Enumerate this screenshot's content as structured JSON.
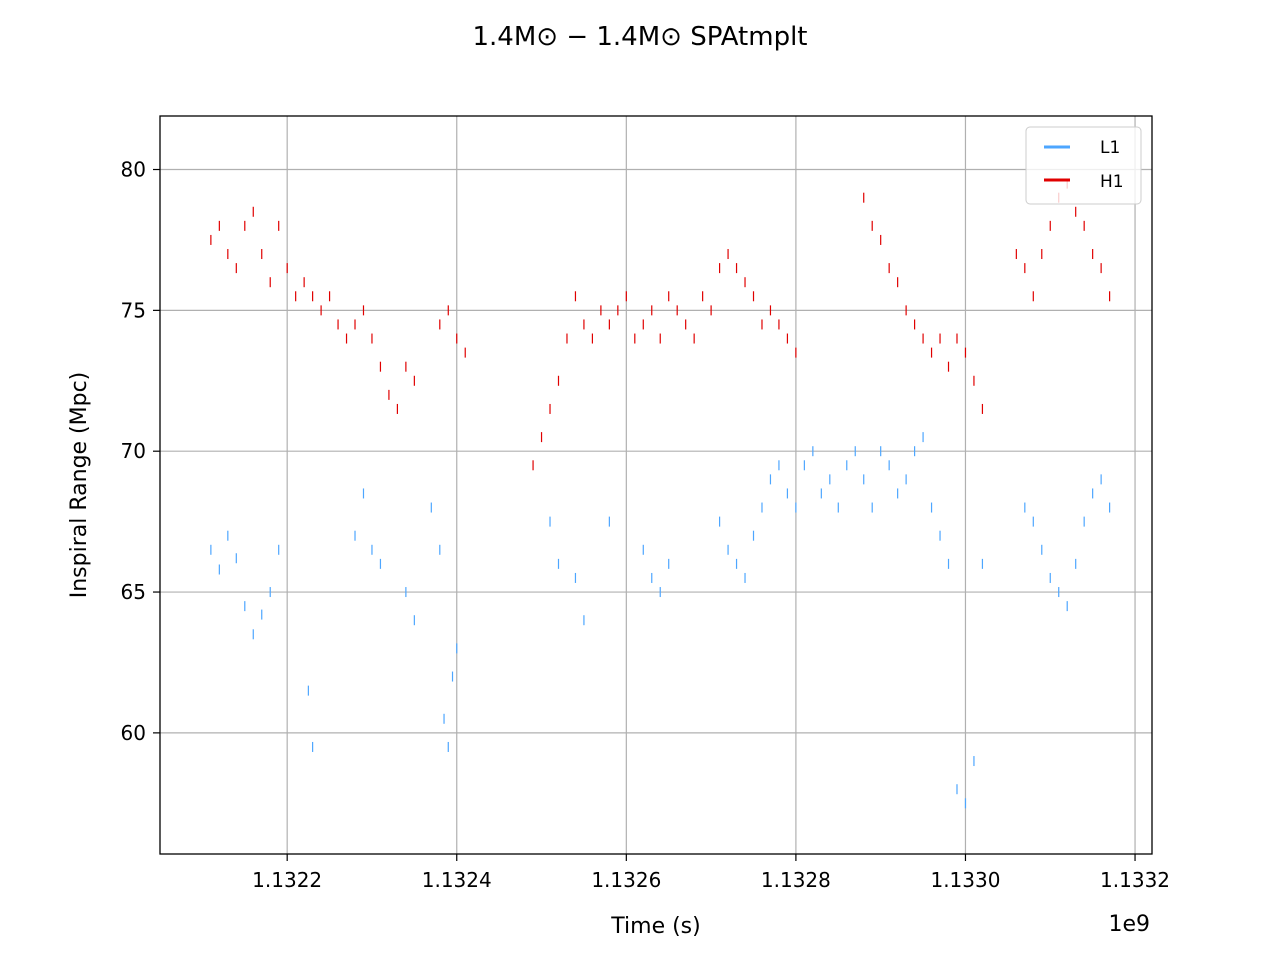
{
  "chart_data": {
    "type": "scatter",
    "title": "1.4M⊙ − 1.4M⊙ SPAtmplt",
    "xlabel": "Time (s)",
    "ylabel": "Inspiral Range (Mpc)",
    "x_offset_label": "1e9",
    "xlim": [
      1.13205,
      1.13322
    ],
    "ylim": [
      55.7,
      81.9
    ],
    "xticks": [
      1.1322,
      1.1324,
      1.1326,
      1.1328,
      1.133,
      1.1332
    ],
    "xtick_labels": [
      "1.1322",
      "1.1324",
      "1.1326",
      "1.1328",
      "1.1330",
      "1.1332"
    ],
    "yticks": [
      60,
      65,
      70,
      75,
      80
    ],
    "ytick_labels": [
      "60",
      "65",
      "70",
      "75",
      "80"
    ],
    "grid": true,
    "legend_position": "top-right",
    "marker": "short vertical dash",
    "series": [
      {
        "name": "L1",
        "color": "#4da6ff",
        "x": [
          1.13211,
          1.13212,
          1.13213,
          1.13214,
          1.13215,
          1.13216,
          1.13217,
          1.13218,
          1.13219,
          1.132225,
          1.13223,
          1.13228,
          1.13229,
          1.1323,
          1.13231,
          1.13234,
          1.13235,
          1.13237,
          1.13238,
          1.132385,
          1.13239,
          1.132395,
          1.1324,
          1.13251,
          1.13252,
          1.13254,
          1.13255,
          1.13258,
          1.13262,
          1.13263,
          1.13264,
          1.13265,
          1.13271,
          1.13272,
          1.13273,
          1.13274,
          1.13275,
          1.13276,
          1.13277,
          1.13278,
          1.13279,
          1.1328,
          1.13281,
          1.13282,
          1.13283,
          1.13284,
          1.13285,
          1.13286,
          1.13287,
          1.13288,
          1.13289,
          1.1329,
          1.13291,
          1.13292,
          1.13293,
          1.13294,
          1.13295,
          1.13296,
          1.13297,
          1.13298,
          1.13299,
          1.133,
          1.13301,
          1.13302,
          1.13307,
          1.13308,
          1.13309,
          1.1331,
          1.13311,
          1.13312,
          1.13313,
          1.13314,
          1.13315,
          1.13316,
          1.13317
        ],
        "y": [
          66.5,
          65.8,
          67.0,
          66.2,
          64.5,
          63.5,
          64.2,
          65.0,
          66.5,
          61.5,
          59.5,
          67.0,
          68.5,
          66.5,
          66.0,
          65.0,
          64.0,
          68.0,
          66.5,
          60.5,
          59.5,
          62.0,
          63.0,
          67.5,
          66.0,
          65.5,
          64.0,
          67.5,
          66.5,
          65.5,
          65.0,
          66.0,
          67.5,
          66.5,
          66.0,
          65.5,
          67.0,
          68.0,
          69.0,
          69.5,
          68.5,
          68.0,
          69.5,
          70.0,
          68.5,
          69.0,
          68.0,
          69.5,
          70.0,
          69.0,
          68.0,
          70.0,
          69.5,
          68.5,
          69.0,
          70.0,
          70.5,
          68.0,
          67.0,
          66.0,
          58.0,
          57.5,
          59.0,
          66.0,
          68.0,
          67.5,
          66.5,
          65.5,
          65.0,
          64.5,
          66.0,
          67.5,
          68.5,
          69.0,
          68.0
        ]
      },
      {
        "name": "H1",
        "color": "#e00000",
        "x": [
          1.13211,
          1.13212,
          1.13213,
          1.13214,
          1.13215,
          1.13216,
          1.13217,
          1.13218,
          1.13219,
          1.1322,
          1.13221,
          1.13222,
          1.13223,
          1.13224,
          1.13225,
          1.13226,
          1.13227,
          1.13228,
          1.13229,
          1.1323,
          1.13231,
          1.13232,
          1.13233,
          1.13234,
          1.13235,
          1.13238,
          1.13239,
          1.1324,
          1.13241,
          1.13249,
          1.1325,
          1.13251,
          1.13252,
          1.13253,
          1.13254,
          1.13255,
          1.13256,
          1.13257,
          1.13258,
          1.13259,
          1.1326,
          1.13261,
          1.13262,
          1.13263,
          1.13264,
          1.13265,
          1.13266,
          1.13267,
          1.13268,
          1.13269,
          1.1327,
          1.13271,
          1.13272,
          1.13273,
          1.13274,
          1.13275,
          1.13276,
          1.13277,
          1.13278,
          1.13279,
          1.1328,
          1.13288,
          1.13289,
          1.1329,
          1.13291,
          1.13292,
          1.13293,
          1.13294,
          1.13295,
          1.13296,
          1.13297,
          1.13298,
          1.13299,
          1.133,
          1.13301,
          1.13302,
          1.13306,
          1.13307,
          1.13308,
          1.13309,
          1.1331,
          1.13311,
          1.13312,
          1.13313,
          1.13314,
          1.13315,
          1.13316,
          1.13317
        ],
        "y": [
          77.5,
          78.0,
          77.0,
          76.5,
          78.0,
          78.5,
          77.0,
          76.0,
          78.0,
          76.5,
          75.5,
          76.0,
          75.5,
          75.0,
          75.5,
          74.5,
          74.0,
          74.5,
          75.0,
          74.0,
          73.0,
          72.0,
          71.5,
          73.0,
          72.5,
          74.5,
          75.0,
          74.0,
          73.5,
          69.5,
          70.5,
          71.5,
          72.5,
          74.0,
          75.5,
          74.5,
          74.0,
          75.0,
          74.5,
          75.0,
          75.5,
          74.0,
          74.5,
          75.0,
          74.0,
          75.5,
          75.0,
          74.5,
          74.0,
          75.5,
          75.0,
          76.5,
          77.0,
          76.5,
          76.0,
          75.5,
          74.5,
          75.0,
          74.5,
          74.0,
          73.5,
          79.0,
          78.0,
          77.5,
          76.5,
          76.0,
          75.0,
          74.5,
          74.0,
          73.5,
          74.0,
          73.0,
          74.0,
          73.5,
          72.5,
          71.5,
          77.0,
          76.5,
          75.5,
          77.0,
          78.0,
          79.0,
          79.5,
          78.5,
          78.0,
          77.0,
          76.5,
          75.5
        ]
      }
    ]
  }
}
